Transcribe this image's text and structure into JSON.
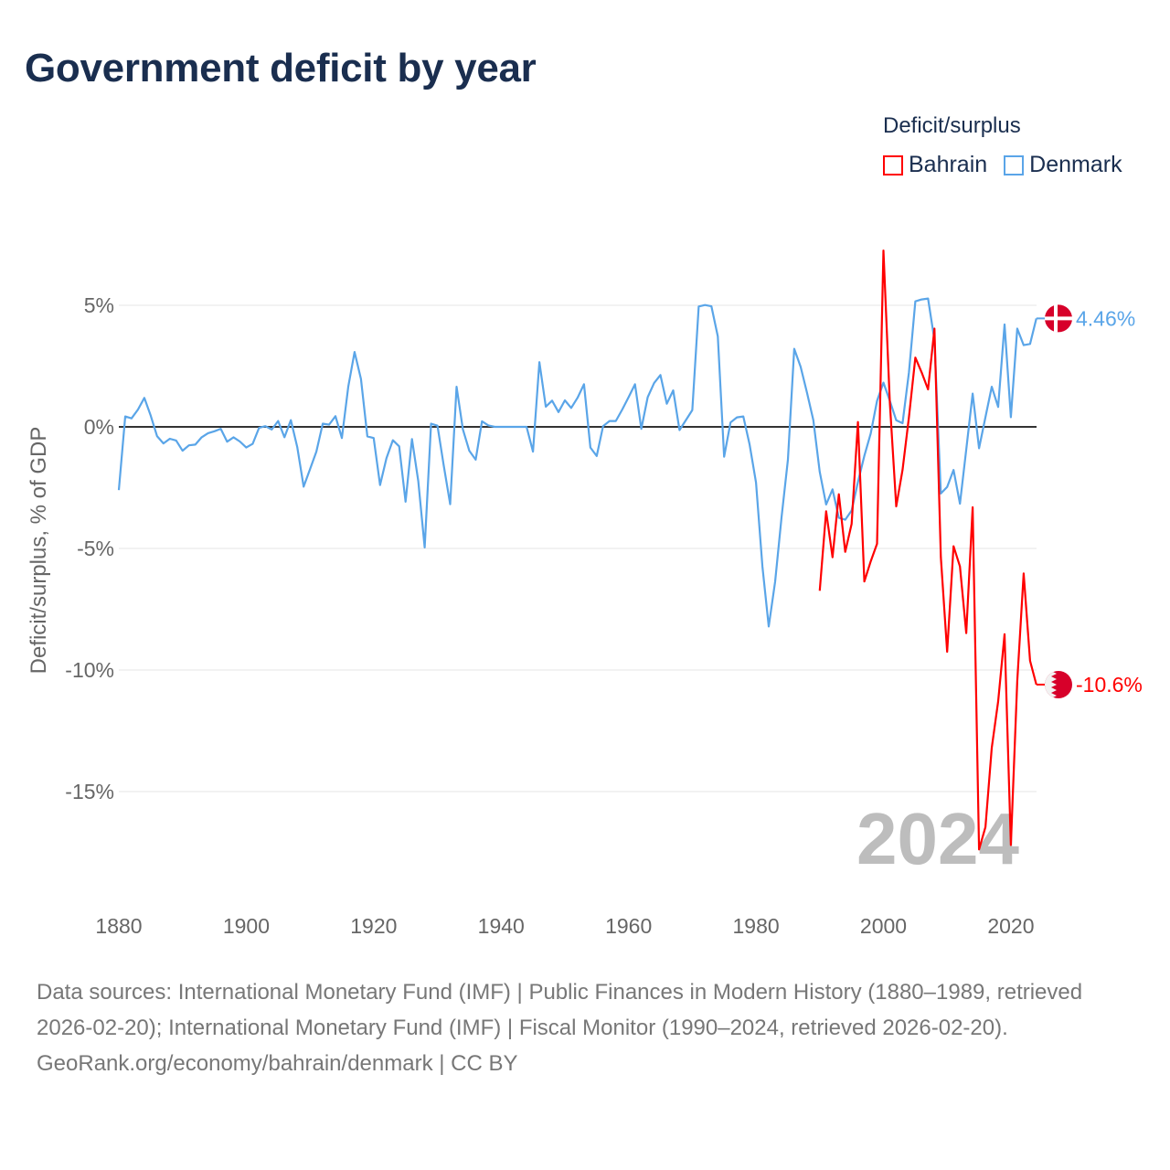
{
  "title": "Government deficit by year",
  "legend": {
    "title": "Deficit/surplus",
    "items": [
      {
        "label": "Bahrain",
        "color": "#ff0000"
      },
      {
        "label": "Denmark",
        "color": "#5aa5e8"
      }
    ]
  },
  "chart_data": {
    "type": "line",
    "title": "Government deficit by year",
    "ylabel": "Deficit/surplus, % of GDP",
    "xlabel": "",
    "xlim": [
      1880,
      2024
    ],
    "ylim": [
      -19,
      8
    ],
    "x_ticks": [
      1880,
      1900,
      1920,
      1940,
      1960,
      1980,
      2000,
      2020
    ],
    "x_tick_labels": [
      "1880",
      "1900",
      "1920",
      "1940",
      "1960",
      "1980",
      "2000",
      "2020"
    ],
    "y_ticks": [
      5,
      0,
      -5,
      -10,
      -15
    ],
    "y_tick_labels": [
      "5%",
      "0%",
      "-5%",
      "-10%",
      "-15%"
    ],
    "grid": true,
    "legend_position": "top-right",
    "year_watermark": "2024",
    "series": [
      {
        "name": "Denmark",
        "color": "#5aa5e8",
        "flag": "denmark-flag",
        "start_year": 1880,
        "end_label": "4.46%",
        "values": [
          -2.6,
          0.43,
          0.35,
          0.71,
          1.19,
          0.46,
          -0.38,
          -0.68,
          -0.49,
          -0.56,
          -0.98,
          -0.76,
          -0.73,
          -0.43,
          -0.26,
          -0.18,
          -0.08,
          -0.61,
          -0.43,
          -0.6,
          -0.85,
          -0.7,
          -0.04,
          0.03,
          -0.11,
          0.24,
          -0.43,
          0.28,
          -0.83,
          -2.46,
          -1.75,
          -1.02,
          0.13,
          0.09,
          0.44,
          -0.46,
          1.65,
          3.08,
          1.97,
          -0.39,
          -0.46,
          -2.39,
          -1.29,
          -0.55,
          -0.8,
          -3.08,
          -0.5,
          -2.23,
          -4.96,
          0.13,
          0.05,
          -1.6,
          -3.18,
          1.65,
          -0.1,
          -0.98,
          -1.35,
          0.23,
          0.06,
          0,
          0,
          0,
          0,
          0,
          0,
          -1.02,
          2.66,
          0.83,
          1.08,
          0.61,
          1.09,
          0.78,
          1.2,
          1.75,
          -0.85,
          -1.2,
          0.03,
          0.24,
          0.24,
          0.71,
          1.22,
          1.75,
          -0.08,
          1.22,
          1.8,
          2.13,
          0.95,
          1.5,
          -0.13,
          0.28,
          0.69,
          4.95,
          5.01,
          4.96,
          3.72,
          -1.23,
          0.18,
          0.39,
          0.43,
          -0.73,
          -2.29,
          -5.74,
          -8.21,
          -6.37,
          -3.73,
          -1.35,
          3.21,
          2.47,
          1.4,
          0.28,
          -1.85,
          -3.19,
          -2.57,
          -3.74,
          -3.82,
          -3.44,
          -2.27,
          -1.19,
          -0.27,
          1.07,
          1.82,
          1.07,
          0.27,
          0.15,
          2.24,
          5.16,
          5.24,
          5.28,
          3.57,
          -2.74,
          -2.47,
          -1.77,
          -3.16,
          -0.93,
          1.37,
          -0.88,
          0.4,
          1.65,
          0.82,
          4.21,
          0.4,
          4.04,
          3.36,
          3.41,
          4.46
        ]
      },
      {
        "name": "Bahrain",
        "color": "#ff0000",
        "flag": "bahrain-flag",
        "start_year": 1990,
        "end_label": "-10.6%",
        "values": [
          -6.74,
          -3.47,
          -5.36,
          -2.77,
          -5.14,
          -3.99,
          0.2,
          -6.36,
          -5.53,
          -4.81,
          7.25,
          1.0,
          -3.27,
          -1.77,
          0.4,
          2.85,
          2.24,
          1.54,
          4.04,
          -5.36,
          -9.25,
          -4.91,
          -5.74,
          -8.48,
          -3.31,
          -17.38,
          -16.46,
          -13.2,
          -11.29,
          -8.53,
          -17.2,
          -10.45,
          -6.03,
          -9.62,
          -10.6
        ]
      }
    ]
  },
  "footer": {
    "sources": "Data sources: International Monetary Fund (IMF) | Public Finances in Modern History (1880–1989, retrieved 2026-02-20); International Monetary Fund (IMF) | Fiscal Monitor (1990–2024, retrieved 2026-02-20).",
    "link": "GeoRank.org/economy/bahrain/denmark",
    "license": " | CC BY"
  }
}
